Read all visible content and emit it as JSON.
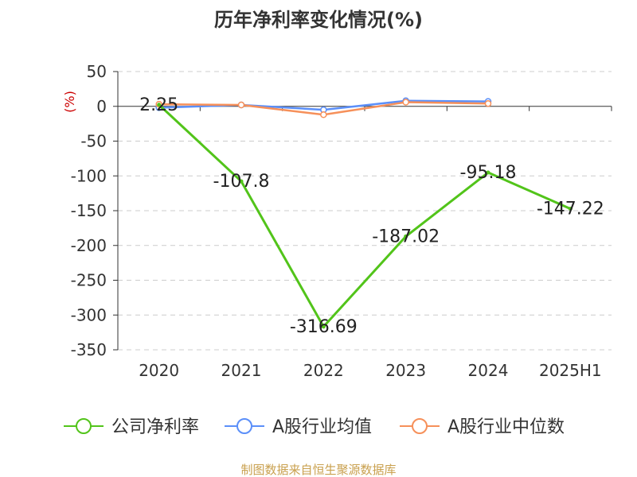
{
  "chart_data": {
    "type": "line",
    "title": "历年净利率变化情况(%)",
    "ylabel": "(%)",
    "xlabel": "",
    "categories": [
      "2020",
      "2021",
      "2022",
      "2023",
      "2024",
      "2025H1"
    ],
    "ylim": [
      -350,
      50
    ],
    "yticks": [
      50,
      0,
      -50,
      -100,
      -150,
      -200,
      -250,
      -300,
      -350
    ],
    "grid": true,
    "legend_position": "bottom",
    "series": [
      {
        "name": "公司净利率",
        "color": "#52c41a",
        "values": [
          2.25,
          -107.8,
          -316.69,
          -187.02,
          -95.18,
          -147.22
        ],
        "labels": [
          "2.25",
          "-107.8",
          "-316.69",
          "-187.02",
          "-95.18",
          "-147.22"
        ]
      },
      {
        "name": "A股行业均值",
        "color": "#5b8ff9",
        "values": [
          -2,
          2,
          -5,
          8,
          7,
          null
        ]
      },
      {
        "name": "A股行业中位数",
        "color": "#f6905a",
        "values": [
          3,
          2,
          -12,
          6,
          4,
          null
        ]
      }
    ]
  },
  "footer": {
    "source": "制图数据来自恒生聚源数据库"
  },
  "colors": {
    "title": "#333333",
    "axis_label": "#cc0000",
    "grid": "#cccccc",
    "source": "#c9a04e"
  }
}
